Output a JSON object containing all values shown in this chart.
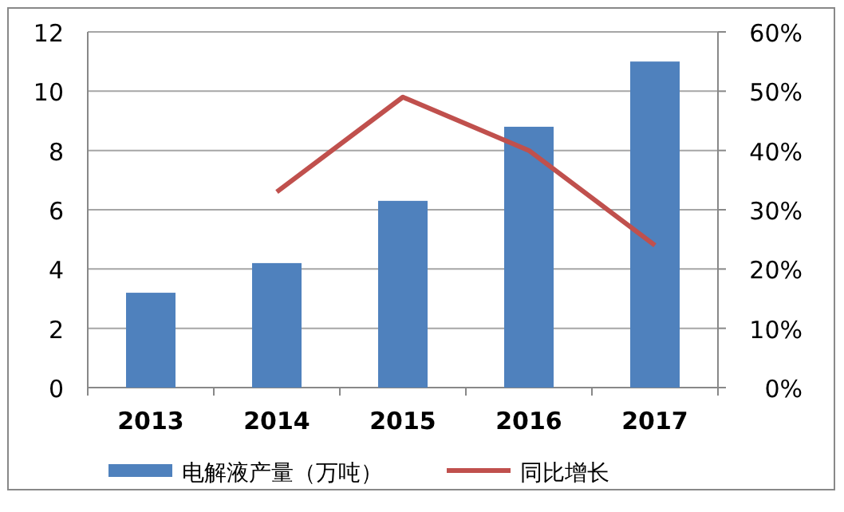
{
  "chart_data": {
    "type": "bar",
    "categories": [
      "2013",
      "2014",
      "2015",
      "2016",
      "2017"
    ],
    "series": [
      {
        "name": "电解液产量（万吨）",
        "color": "#4f81bd",
        "values": [
          3.2,
          4.2,
          6.3,
          8.8,
          11.0
        ]
      },
      {
        "name": "同比增长",
        "type": "line",
        "axis": "y2",
        "color": "#c0504d",
        "values": [
          null,
          33,
          49,
          40,
          24
        ]
      }
    ],
    "ylim": [
      0,
      12
    ],
    "yticks": [
      0,
      2,
      4,
      6,
      8,
      10,
      12
    ],
    "y2lim": [
      0,
      60
    ],
    "y2ticks": [
      {
        "value": 0,
        "label": "0%"
      },
      {
        "value": 10,
        "label": "10%"
      },
      {
        "value": 20,
        "label": "20%"
      },
      {
        "value": 30,
        "label": "30%"
      },
      {
        "value": 40,
        "label": "40%"
      },
      {
        "value": 50,
        "label": "50%"
      },
      {
        "value": 60,
        "label": "60%"
      }
    ],
    "grid": "y",
    "legend": "bottom"
  }
}
